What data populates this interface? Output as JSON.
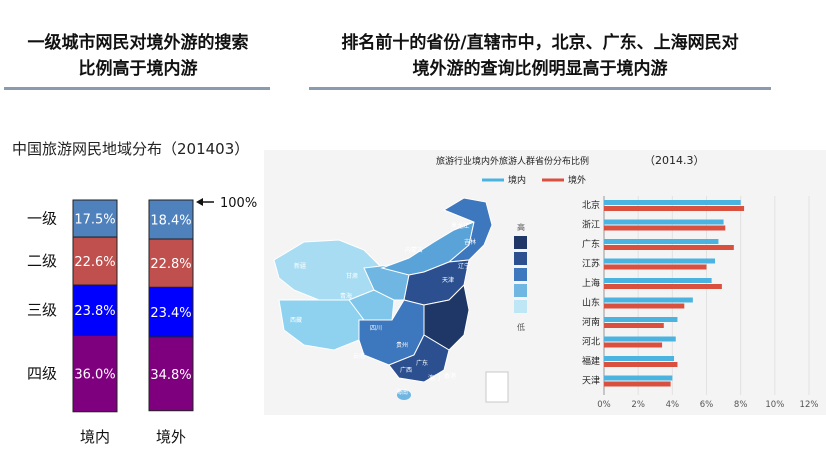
{
  "header": {
    "left_title_line1": "一级城市网民对境外游的搜索",
    "left_title_line2": "比例高于境内游",
    "right_title_line1": "排名前十的省份/直辖市中，北京、广东、上海网民对",
    "right_title_line2": "境外游的查询比例明显高于境内游"
  },
  "colors": {
    "tier1": "#4f81bd",
    "tier2": "#c0504d",
    "tier3": "#0000ff",
    "tier4": "#7f007f",
    "domestic": "#4bb3e0",
    "outbound": "#d9503f",
    "map_dark": "#1f3766",
    "map_light": "#bfe6f5"
  },
  "chart_data": [
    {
      "type": "bar",
      "stacked": true,
      "title": "中国旅游网民地域分布（201403）",
      "categories": [
        "境内",
        "境外"
      ],
      "series": [
        {
          "name": "一级",
          "values": [
            17.5,
            18.4
          ],
          "labels": [
            "17.5%",
            "18.4%"
          ]
        },
        {
          "name": "二级",
          "values": [
            22.6,
            22.8
          ],
          "labels": [
            "22.6%",
            "22.8%"
          ]
        },
        {
          "name": "三级",
          "values": [
            23.8,
            23.4
          ],
          "labels": [
            "23.8%",
            "23.4%"
          ]
        },
        {
          "name": "四级",
          "values": [
            36.0,
            34.8
          ],
          "labels": [
            "36.0%",
            "34.8%"
          ]
        }
      ],
      "annotation": "100%"
    },
    {
      "type": "bar",
      "orientation": "horizontal",
      "title": "旅游行业境内外旅游人群省份分布比例",
      "title_date": "（2014.3）",
      "categories": [
        "北京",
        "浙江",
        "广东",
        "江苏",
        "上海",
        "山东",
        "河南",
        "河北",
        "福建",
        "天津"
      ],
      "series": [
        {
          "name": "境内",
          "values": [
            8.0,
            7.0,
            6.7,
            6.5,
            6.3,
            5.2,
            4.3,
            4.2,
            4.1,
            4.0
          ]
        },
        {
          "name": "境外",
          "values": [
            8.2,
            7.1,
            7.6,
            6.0,
            6.9,
            4.7,
            3.5,
            3.4,
            4.3,
            3.9
          ]
        }
      ],
      "xticks": [
        "0%",
        "2%",
        "4%",
        "6%",
        "8%",
        "10%",
        "12%"
      ],
      "xlim": [
        0,
        12
      ],
      "legend": "top"
    }
  ],
  "map": {
    "legend_high": "高",
    "legend_low": "低",
    "legend_levels": 5,
    "region_labels": [
      "新疆",
      "西藏",
      "青海",
      "甘肃",
      "内蒙古",
      "黑龙江",
      "吉林",
      "辽宁",
      "天津",
      "四川",
      "云南",
      "贵州",
      "广西",
      "广东",
      "澳门",
      "香港",
      "海南"
    ]
  }
}
